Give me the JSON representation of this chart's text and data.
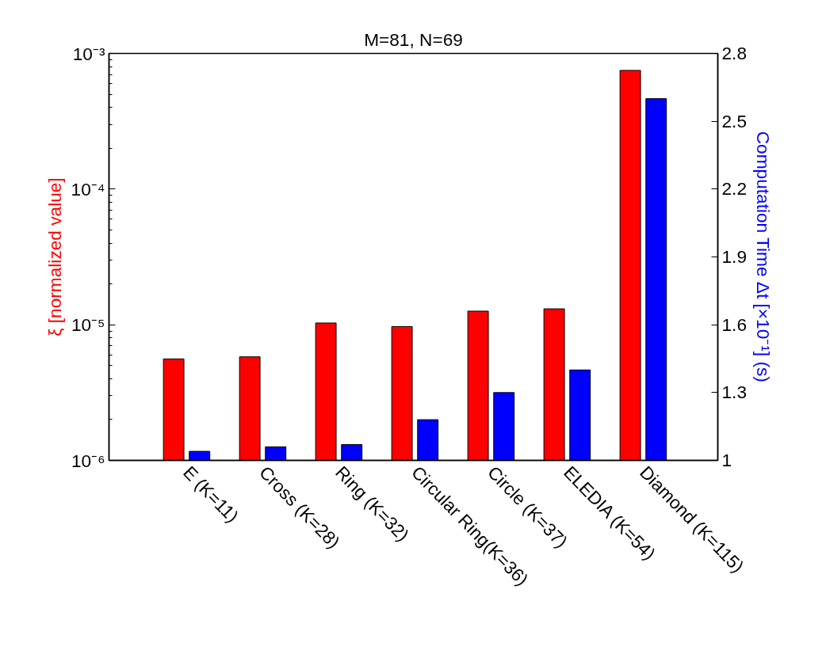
{
  "chart_data": {
    "type": "bar",
    "title": "M=81, N=69",
    "categories": [
      "E (K=11)",
      "Cross (K=28)",
      "Ring (K=32)",
      "Circular Ring(K=36)",
      "Circle (K=37)",
      "ELEDIA (K=54)",
      "Diamond (K=115)"
    ],
    "ylabel": "ξ [normalized value]",
    "y2label": "Computation Time Δt [×10⁻¹] (s)",
    "log": "y",
    "ylim": [
      1e-06,
      0.001
    ],
    "yticks": [
      {
        "value": 1e-06,
        "label": "10⁻⁶"
      },
      {
        "value": 1e-05,
        "label": "10⁻⁵"
      },
      {
        "value": 0.0001,
        "label": "10⁻⁴"
      },
      {
        "value": 0.001,
        "label": "10⁻³"
      }
    ],
    "y2lim": [
      1,
      2.8
    ],
    "y2ticks": [
      {
        "value": 1,
        "label": "1"
      },
      1.3,
      1.6,
      1.9,
      2.2,
      2.5,
      2.8
    ],
    "grid": false,
    "series": [
      {
        "color": "#ff0000",
        "values": [
          5.6e-06,
          5.8e-06,
          1.03e-05,
          9.7e-06,
          1.26e-05,
          1.31e-05,
          0.00075
        ]
      },
      {
        "color": "#0000ff",
        "axis": "y2",
        "values": [
          1.04,
          1.06,
          1.07,
          1.18,
          1.3,
          1.4,
          2.6
        ]
      }
    ]
  }
}
